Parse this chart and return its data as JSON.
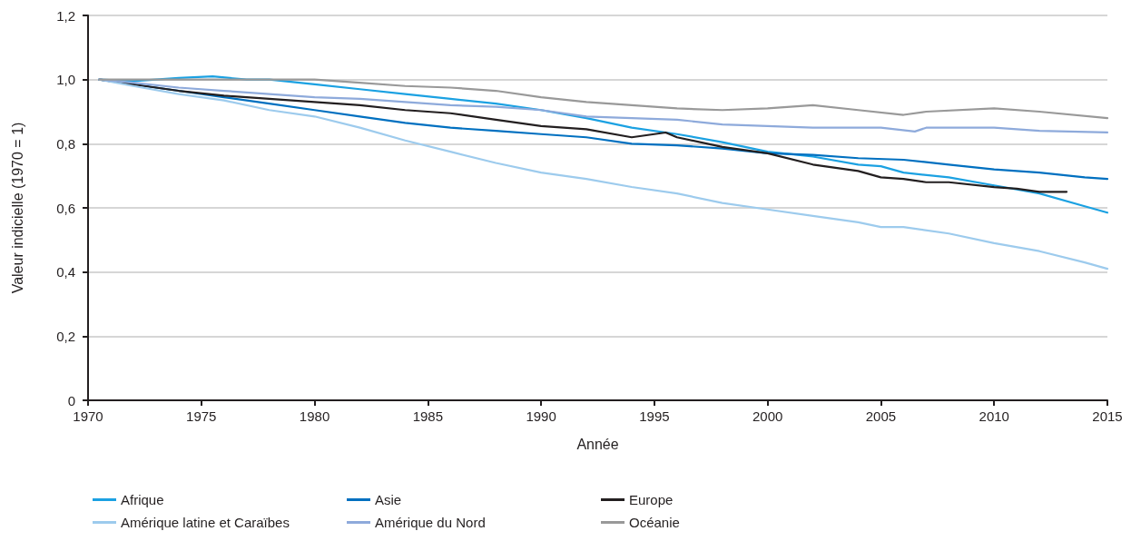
{
  "chart_data": {
    "type": "line",
    "xlabel": "Année",
    "ylabel": "Valeur indicielle (1970 = 1)",
    "xlim": [
      1970,
      2015
    ],
    "xticks": [
      1970,
      1975,
      1980,
      1985,
      1990,
      1995,
      2000,
      2005,
      2010,
      2015
    ],
    "ylim": [
      0,
      1.2
    ],
    "yticks": [
      0,
      {
        "value": 0.2,
        "label": "0,2"
      },
      {
        "value": 0.4,
        "label": "0,4"
      },
      {
        "value": 0.6,
        "label": "0,6"
      },
      {
        "value": 0.8,
        "label": "0,8"
      },
      {
        "value": 1.0,
        "label": "1,0"
      },
      {
        "value": 1.2,
        "label": "1,2"
      }
    ],
    "grid": "y",
    "legend": "bottom",
    "marker": "none",
    "line_style": "solid",
    "series": [
      {
        "name": "Afrique",
        "color": "#1ba1e2",
        "x": [
          1970.5,
          1972,
          1974,
          1975.5,
          1977,
          1978,
          1980,
          1982,
          1984,
          1986,
          1988,
          1990,
          1992,
          1994,
          1996,
          1998,
          2000,
          2002,
          2004,
          2005,
          2006,
          2008,
          2010,
          2012,
          2014,
          2015
        ],
        "values": [
          1.0,
          0.995,
          1.005,
          1.01,
          1.0,
          1.0,
          0.985,
          0.97,
          0.955,
          0.94,
          0.925,
          0.905,
          0.88,
          0.85,
          0.83,
          0.805,
          0.775,
          0.76,
          0.735,
          0.73,
          0.71,
          0.695,
          0.67,
          0.645,
          0.605,
          0.585
        ]
      },
      {
        "name": "Asie",
        "color": "#0070c0",
        "x": [
          1970.5,
          1972,
          1974,
          1976,
          1978,
          1980,
          1982,
          1984,
          1986,
          1988,
          1990,
          1992,
          1994,
          1996,
          1998,
          2000,
          2002,
          2004,
          2006,
          2008,
          2010,
          2012,
          2014,
          2015
        ],
        "values": [
          1.0,
          0.985,
          0.965,
          0.945,
          0.925,
          0.905,
          0.885,
          0.865,
          0.85,
          0.84,
          0.83,
          0.82,
          0.8,
          0.795,
          0.785,
          0.77,
          0.765,
          0.755,
          0.75,
          0.735,
          0.72,
          0.71,
          0.695,
          0.69
        ]
      },
      {
        "name": "Europe",
        "color": "#231f20",
        "x": [
          1970.5,
          1972,
          1974,
          1976,
          1978,
          1980,
          1982,
          1984,
          1985,
          1986,
          1988,
          1990,
          1992,
          1994,
          1995.5,
          1996,
          1998,
          2000,
          2002,
          2004,
          2005,
          2006,
          2007,
          2008,
          2010,
          2011,
          2012,
          2013.2
        ],
        "values": [
          1.0,
          0.985,
          0.965,
          0.95,
          0.94,
          0.93,
          0.92,
          0.905,
          0.9,
          0.895,
          0.875,
          0.855,
          0.845,
          0.82,
          0.835,
          0.82,
          0.79,
          0.77,
          0.735,
          0.715,
          0.695,
          0.69,
          0.68,
          0.68,
          0.665,
          0.66,
          0.65,
          0.65
        ]
      },
      {
        "name": "Amérique latine et Caraïbes",
        "color": "#9dcbed",
        "x": [
          1970.5,
          1972,
          1974,
          1976,
          1978,
          1980,
          1982,
          1984,
          1986,
          1988,
          1990,
          1992,
          1994,
          1996,
          1998,
          2000,
          2002,
          2004,
          2005,
          2006,
          2008,
          2010,
          2012,
          2014,
          2015
        ],
        "values": [
          1.0,
          0.98,
          0.955,
          0.935,
          0.905,
          0.885,
          0.85,
          0.81,
          0.775,
          0.74,
          0.71,
          0.69,
          0.665,
          0.645,
          0.615,
          0.595,
          0.575,
          0.555,
          0.54,
          0.54,
          0.52,
          0.49,
          0.465,
          0.43,
          0.41
        ]
      },
      {
        "name": "Amérique du Nord",
        "color": "#8eaadb",
        "x": [
          1970.5,
          1972,
          1974,
          1976,
          1978,
          1980,
          1982,
          1984,
          1986,
          1988,
          1990,
          1992,
          1994,
          1996,
          1998,
          2000,
          2002,
          2004,
          2005,
          2006.5,
          2007,
          2010,
          2012,
          2015
        ],
        "values": [
          1.0,
          0.99,
          0.975,
          0.965,
          0.955,
          0.945,
          0.94,
          0.93,
          0.92,
          0.915,
          0.905,
          0.885,
          0.88,
          0.875,
          0.86,
          0.855,
          0.85,
          0.85,
          0.85,
          0.838,
          0.85,
          0.85,
          0.84,
          0.835
        ]
      },
      {
        "name": "Océanie",
        "color": "#999999",
        "x": [
          1970.5,
          1975,
          1978,
          1980,
          1982,
          1984,
          1986,
          1988,
          1990,
          1992,
          1994,
          1996,
          1998,
          2000,
          2002,
          2004,
          2006,
          2007,
          2010,
          2012,
          2015
        ],
        "values": [
          1.0,
          1.0,
          1.0,
          1.0,
          0.99,
          0.98,
          0.975,
          0.965,
          0.945,
          0.93,
          0.92,
          0.91,
          0.905,
          0.91,
          0.92,
          0.905,
          0.89,
          0.9,
          0.91,
          0.9,
          0.88
        ]
      }
    ]
  }
}
